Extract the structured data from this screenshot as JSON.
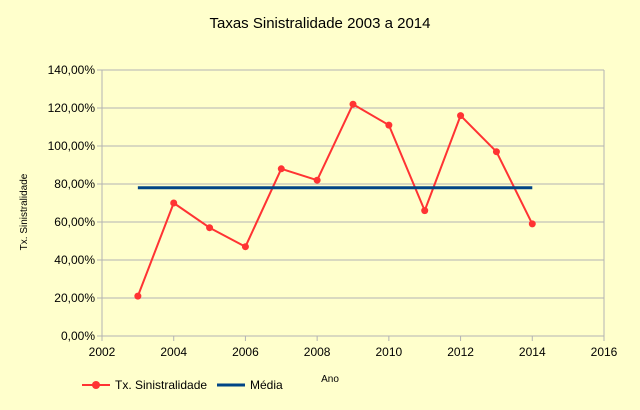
{
  "chart_data": {
    "type": "line",
    "title": "Taxas Sinistralidade 2003 a 2014",
    "xlabel": "Ano",
    "ylabel": "Tx. Sinistralidade",
    "xlim": [
      2002,
      2016
    ],
    "ylim": [
      0,
      1.4
    ],
    "x_ticks": [
      {
        "value": 2002,
        "label": "2002"
      },
      {
        "value": 2004,
        "label": "2004"
      },
      {
        "value": 2006,
        "label": "2006"
      },
      {
        "value": 2008,
        "label": "2008"
      },
      {
        "value": 2010,
        "label": "2010"
      },
      {
        "value": 2012,
        "label": "2012"
      },
      {
        "value": 2014,
        "label": "2014"
      },
      {
        "value": 2016,
        "label": "2016"
      }
    ],
    "y_ticks": [
      {
        "value": 0,
        "label": "0,00%"
      },
      {
        "value": 0.2,
        "label": "20,00%"
      },
      {
        "value": 0.4,
        "label": "40,00%"
      },
      {
        "value": 0.6,
        "label": "60,00%"
      },
      {
        "value": 0.8,
        "label": "80,00%"
      },
      {
        "value": 1.0,
        "label": "100,00%"
      },
      {
        "value": 1.2,
        "label": "120,00%"
      },
      {
        "value": 1.4,
        "label": "140,00%"
      }
    ],
    "grid": "horizontal",
    "legend_position": "bottom-left",
    "series": [
      {
        "name": "Tx. Sinistralidade",
        "color": "#ff3333",
        "style": "line-with-markers",
        "x": [
          2003,
          2004,
          2005,
          2006,
          2007,
          2008,
          2009,
          2010,
          2011,
          2012,
          2013,
          2014
        ],
        "y": [
          0.21,
          0.7,
          0.57,
          0.47,
          0.88,
          0.82,
          1.22,
          1.11,
          0.66,
          1.16,
          0.97,
          0.59
        ]
      },
      {
        "name": "Média",
        "color": "#004586",
        "style": "line",
        "x": [
          2003,
          2014
        ],
        "y": [
          0.78,
          0.78
        ]
      }
    ],
    "colors": {
      "background": "#ffffcc",
      "grid": "#b3b3b3",
      "axis": "#b3b3b3"
    }
  }
}
